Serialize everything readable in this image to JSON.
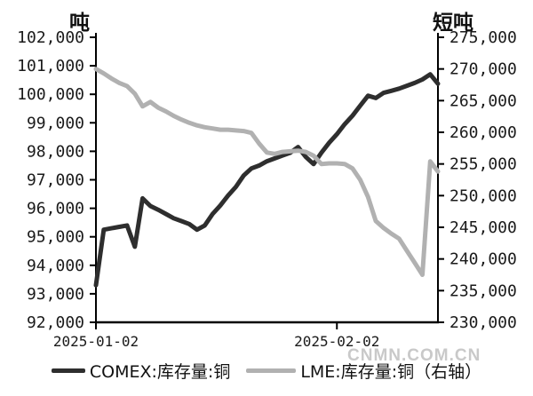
{
  "watermark": {
    "text": "CNMN.COM.CN",
    "color": "#c9c9c9"
  },
  "chart_data": {
    "type": "line",
    "grid": false,
    "background": "#ffffff",
    "legend_position": "bottom",
    "left_axis": {
      "unit": "吨",
      "min": 92000,
      "max": 102000,
      "tick_values": [
        102000,
        101000,
        100000,
        99000,
        98000,
        97000,
        96000,
        95000,
        94000,
        93000,
        92000
      ],
      "tick_labels": [
        "102,000",
        "101,000",
        "100,000",
        "99,000",
        "98,000",
        "97,000",
        "96,000",
        "95,000",
        "94,000",
        "93,000",
        "92,000"
      ]
    },
    "right_axis": {
      "unit": "短吨",
      "min": 230000,
      "max": 275000,
      "tick_values": [
        275000,
        270000,
        265000,
        260000,
        255000,
        250000,
        245000,
        240000,
        235000,
        230000
      ],
      "tick_labels": [
        "275,000",
        "270,000",
        "265,000",
        "260,000",
        "255,000",
        "250,000",
        "245,000",
        "240,000",
        "235,000",
        "230,000"
      ]
    },
    "x_axis": {
      "start_date": "2025-01-02",
      "frequency": "daily",
      "ticks": [
        {
          "label": "2025-01-02",
          "day_index": 0
        },
        {
          "label": "2025-02-02",
          "day_index": 31
        }
      ]
    },
    "series": [
      {
        "name": "COMEX:库存量:铜",
        "axis": "left",
        "color": "#2e2e2e",
        "values": [
          93300,
          95250,
          95300,
          95350,
          95400,
          94650,
          96350,
          96080,
          95950,
          95800,
          95650,
          95550,
          95450,
          95250,
          95400,
          95800,
          96100,
          96450,
          96750,
          97150,
          97400,
          97500,
          97650,
          97750,
          97850,
          97950,
          98150,
          97800,
          97550,
          97950,
          98300,
          98600,
          98950,
          99250,
          99600,
          99950,
          99870,
          100050,
          100120,
          100200,
          100300,
          100400,
          100520,
          100700,
          100370
        ]
      },
      {
        "name": "LME:库存量:铜（右轴）",
        "axis": "right",
        "color": "#b1b1b1",
        "values": [
          270000,
          269300,
          268500,
          267800,
          267300,
          266100,
          264100,
          264800,
          263900,
          263300,
          262600,
          262000,
          261500,
          261100,
          260800,
          260600,
          260400,
          260400,
          260300,
          260200,
          259900,
          258200,
          256800,
          256600,
          256900,
          257000,
          257100,
          256900,
          256300,
          255000,
          255100,
          255100,
          255000,
          254300,
          252500,
          249800,
          246000,
          244900,
          244000,
          243200,
          241300,
          239400,
          237500,
          255400,
          253800
        ]
      }
    ]
  }
}
